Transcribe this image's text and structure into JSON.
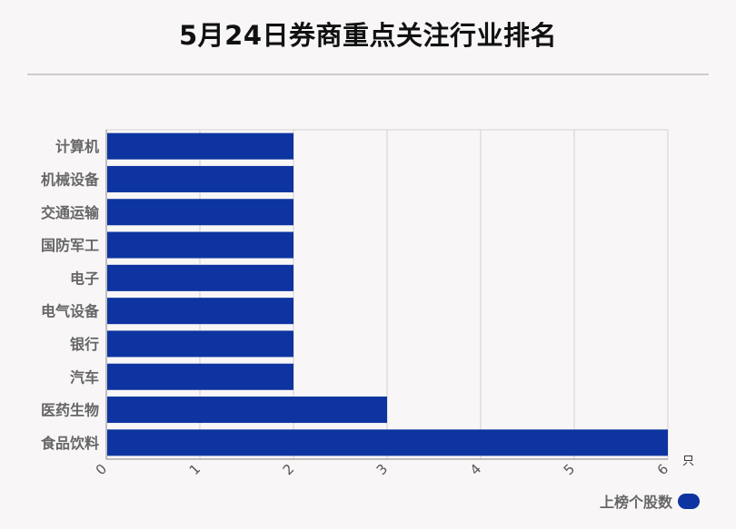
{
  "title": "5月24日券商重点关注行业排名",
  "chart_data": {
    "type": "bar",
    "orientation": "horizontal",
    "categories": [
      "计算机",
      "机械设备",
      "交通运输",
      "国防军工",
      "电子",
      "电气设备",
      "银行",
      "汽车",
      "医药生物",
      "食品饮料"
    ],
    "series": [
      {
        "name": "上榜个股数",
        "values": [
          2,
          2,
          2,
          2,
          2,
          2,
          2,
          2,
          3,
          6
        ]
      }
    ],
    "xlim": [
      0,
      6
    ],
    "x_ticks": [
      "0",
      "1",
      "2",
      "3",
      "4",
      "5",
      "6"
    ],
    "x_unit": "只",
    "grid": true,
    "legend_position": "bottom-right",
    "bar_color": "#0d34a0"
  }
}
